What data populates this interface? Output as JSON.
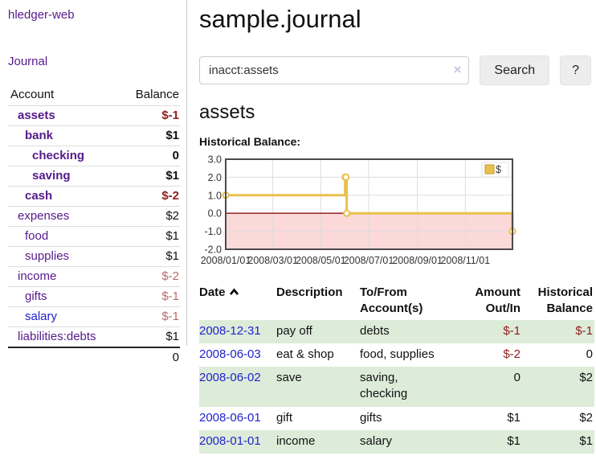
{
  "app": {
    "title": "hledger-web"
  },
  "sidebar": {
    "journal_link": "Journal",
    "accounts_table": {
      "headers": {
        "account": "Account",
        "balance": "Balance"
      },
      "rows": [
        {
          "name": "assets",
          "indent": 1,
          "bold": true,
          "balance": "$-1",
          "bal_class": "neg-strong"
        },
        {
          "name": "bank",
          "indent": 2,
          "bold": true,
          "balance": "$1",
          "bal_class": "pos"
        },
        {
          "name": "checking",
          "indent": 3,
          "bold": true,
          "balance": "0",
          "bal_class": "pos"
        },
        {
          "name": "saving",
          "indent": 3,
          "bold": true,
          "balance": "$1",
          "bal_class": "pos"
        },
        {
          "name": "cash",
          "indent": 2,
          "bold": true,
          "balance": "$-2",
          "bal_class": "neg-strong"
        },
        {
          "name": "expenses",
          "indent": 1,
          "bold": false,
          "balance": "$2",
          "bal_class": "pos"
        },
        {
          "name": "food",
          "indent": 2,
          "bold": false,
          "balance": "$1",
          "bal_class": "pos"
        },
        {
          "name": "supplies",
          "indent": 2,
          "bold": false,
          "balance": "$1",
          "bal_class": "pos"
        },
        {
          "name": "income",
          "indent": 1,
          "bold": false,
          "balance": "$-2",
          "bal_class": "neg-soft"
        },
        {
          "name": "gifts",
          "indent": 2,
          "bold": false,
          "balance": "$-1",
          "bal_class": "neg-soft"
        },
        {
          "name": "salary",
          "indent": 2,
          "bold": false,
          "balance": "$-1",
          "bal_class": "neg-soft",
          "blue": true
        },
        {
          "name": "liabilities:debts",
          "indent": 1,
          "bold": false,
          "balance": "$1",
          "bal_class": "pos"
        }
      ],
      "total": "0"
    }
  },
  "main": {
    "title": "sample.journal",
    "search": {
      "value": "inacct:assets",
      "clear_icon": "×",
      "button_label": "Search",
      "help_label": "?"
    },
    "account_heading": "assets",
    "chart_label": "Historical Balance:"
  },
  "chart_data": {
    "type": "line",
    "step": true,
    "title": "Historical Balance",
    "series": [
      {
        "name": "$",
        "color": "#e9c14d",
        "points": [
          [
            "2008-01-01",
            1.0
          ],
          [
            "2008-06-01",
            2.0
          ],
          [
            "2008-06-02",
            2.0
          ],
          [
            "2008-06-03",
            0.0
          ],
          [
            "2008-12-31",
            -1.0
          ]
        ]
      }
    ],
    "x_ticks": [
      "2008/01/01",
      "2008/03/01",
      "2008/05/01",
      "2008/07/01",
      "2008/09/01",
      "2008/11/01"
    ],
    "y_ticks": [
      3.0,
      2.0,
      1.0,
      0.0,
      -1.0,
      -2.0
    ],
    "ylim": [
      -2,
      3
    ],
    "grid": true,
    "legend_position": "top-right",
    "legend_label": "$",
    "negative_fill": "#fbd9d9",
    "zero_line_color": "#8b1010",
    "border_color": "#4a4a4a"
  },
  "register": {
    "headers": {
      "date": "Date",
      "description": "Description",
      "accounts": "To/From Account(s)",
      "amount": "Amount Out/In",
      "balance": "Historical Balance"
    },
    "rows": [
      {
        "date": "2008-12-31",
        "description": "pay off",
        "accounts": "debts",
        "amount": "$-1",
        "amount_neg": true,
        "balance": "$-1",
        "balance_neg": true
      },
      {
        "date": "2008-06-03",
        "description": "eat & shop",
        "accounts": "food, supplies",
        "amount": "$-2",
        "amount_neg": true,
        "balance": "0",
        "balance_neg": false
      },
      {
        "date": "2008-06-02",
        "description": "save",
        "accounts": "saving, checking",
        "amount": "0",
        "amount_neg": false,
        "balance": "$2",
        "balance_neg": false
      },
      {
        "date": "2008-06-01",
        "description": "gift",
        "accounts": "gifts",
        "amount": "$1",
        "amount_neg": false,
        "balance": "$2",
        "balance_neg": false
      },
      {
        "date": "2008-01-01",
        "description": "income",
        "accounts": "salary",
        "amount": "$1",
        "amount_neg": false,
        "balance": "$1",
        "balance_neg": false
      }
    ]
  }
}
